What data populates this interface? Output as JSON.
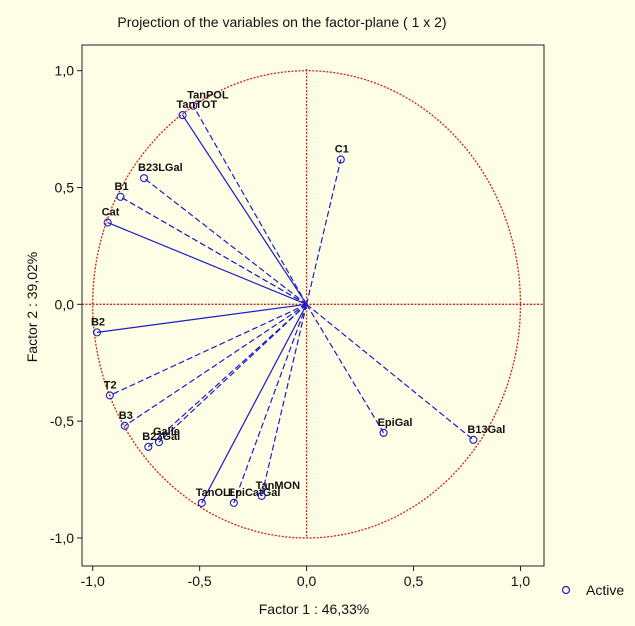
{
  "chart_data": {
    "type": "scatter",
    "title": "Projection of the variables on the factor-plane (  1 x   2)",
    "xlabel": "Factor 1 : 46,33%",
    "ylabel": "Factor 2 : 39,02%",
    "xlim": [
      -1.05,
      1.11
    ],
    "ylim": [
      -1.12,
      1.11
    ],
    "xticks": [
      {
        "value": -1.0,
        "label": "-1,0"
      },
      {
        "value": -0.5,
        "label": "-0,5"
      },
      {
        "value": 0.0,
        "label": "0,0"
      },
      {
        "value": 0.5,
        "label": "0,5"
      },
      {
        "value": 1.0,
        "label": "1,0"
      }
    ],
    "yticks": [
      {
        "value": 1.0,
        "label": "1,0"
      },
      {
        "value": 0.5,
        "label": "0,5"
      },
      {
        "value": 0.0,
        "label": "0,0"
      },
      {
        "value": -0.5,
        "label": "-0,5"
      },
      {
        "value": -1.0,
        "label": "-1,0"
      }
    ],
    "grid": false,
    "legend": {
      "position": "bottom-right",
      "entries": [
        "Active"
      ]
    },
    "colors": {
      "vectors": "#1c1cc8",
      "circle": "#cc2222",
      "axes": "#cc2222",
      "markers": "#1c1cc8"
    },
    "points": [
      {
        "label": "TanPOL",
        "x": -0.53,
        "y": 0.85,
        "line": "dashed"
      },
      {
        "label": "TanTOT",
        "x": -0.58,
        "y": 0.81,
        "line": "solid"
      },
      {
        "label": "C1",
        "x": 0.16,
        "y": 0.62,
        "line": "dashed"
      },
      {
        "label": "B23LGal",
        "x": -0.76,
        "y": 0.54,
        "line": "dashed"
      },
      {
        "label": "B1",
        "x": -0.87,
        "y": 0.46,
        "line": "dashed"
      },
      {
        "label": "Cat",
        "x": -0.93,
        "y": 0.35,
        "line": "solid"
      },
      {
        "label": "B2",
        "x": -0.98,
        "y": -0.12,
        "line": "solid"
      },
      {
        "label": "T2",
        "x": -0.92,
        "y": -0.39,
        "line": "dashed"
      },
      {
        "label": "B3",
        "x": -0.85,
        "y": -0.52,
        "line": "dashed"
      },
      {
        "label": "B23Gal",
        "x": -0.74,
        "y": -0.61,
        "line": "dashed"
      },
      {
        "label": "Galle",
        "x": -0.69,
        "y": -0.59,
        "line": "dashed"
      },
      {
        "label": "EpiGal",
        "x": 0.36,
        "y": -0.55,
        "line": "dashed"
      },
      {
        "label": "B13Gal",
        "x": 0.78,
        "y": -0.58,
        "line": "dashed"
      },
      {
        "label": "TanOLI",
        "x": -0.49,
        "y": -0.85,
        "line": "solid"
      },
      {
        "label": "EpiCatGal",
        "x": -0.34,
        "y": -0.85,
        "line": "dashed"
      },
      {
        "label": "TanMON",
        "x": -0.21,
        "y": -0.82,
        "line": "dashed"
      }
    ]
  }
}
